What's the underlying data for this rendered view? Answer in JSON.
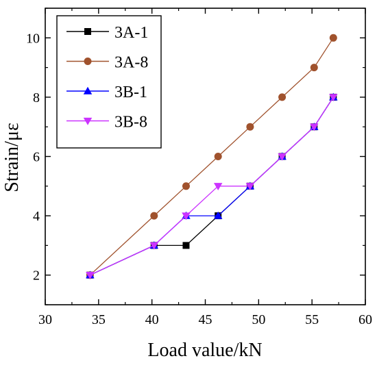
{
  "chart_data": {
    "type": "line",
    "xlabel": "Load value/kN",
    "ylabel": "Strain/με",
    "xlim": [
      30,
      60
    ],
    "ylim": [
      1,
      11
    ],
    "x_ticks": [
      30,
      35,
      40,
      45,
      50,
      55,
      60
    ],
    "y_ticks": [
      2,
      4,
      6,
      8,
      10
    ],
    "x_tick_labels": [
      "30",
      "35",
      "40",
      "45",
      "50",
      "55",
      "60"
    ],
    "y_tick_labels": [
      "2",
      "4",
      "6",
      "8",
      "10"
    ],
    "grid": false,
    "legend_position": "top-left",
    "series": [
      {
        "name": "3A-1",
        "color": "#000000",
        "marker": "square",
        "x": [
          34.2,
          40.2,
          43.2,
          46.2,
          49.2,
          52.2,
          55.2,
          57.0
        ],
        "y": [
          2,
          3,
          3,
          4,
          5,
          6,
          7,
          8
        ]
      },
      {
        "name": "3A-8",
        "color": "#a0522d",
        "marker": "circle",
        "x": [
          34.2,
          40.2,
          43.2,
          46.2,
          49.2,
          52.2,
          55.2,
          57.0
        ],
        "y": [
          2,
          4,
          5,
          6,
          7,
          8,
          9,
          10
        ]
      },
      {
        "name": "3B-1",
        "color": "#0000ff",
        "marker": "triangle-up",
        "x": [
          34.2,
          40.2,
          43.2,
          46.2,
          49.2,
          52.2,
          55.2,
          57.0
        ],
        "y": [
          2,
          3,
          4,
          4,
          5,
          6,
          7,
          8
        ]
      },
      {
        "name": "3B-8",
        "color": "#cc33ff",
        "marker": "triangle-down",
        "x": [
          34.2,
          40.2,
          43.2,
          46.2,
          49.2,
          52.2,
          55.2,
          57.0
        ],
        "y": [
          2,
          3,
          4,
          5,
          5,
          6,
          7,
          8
        ]
      }
    ]
  }
}
